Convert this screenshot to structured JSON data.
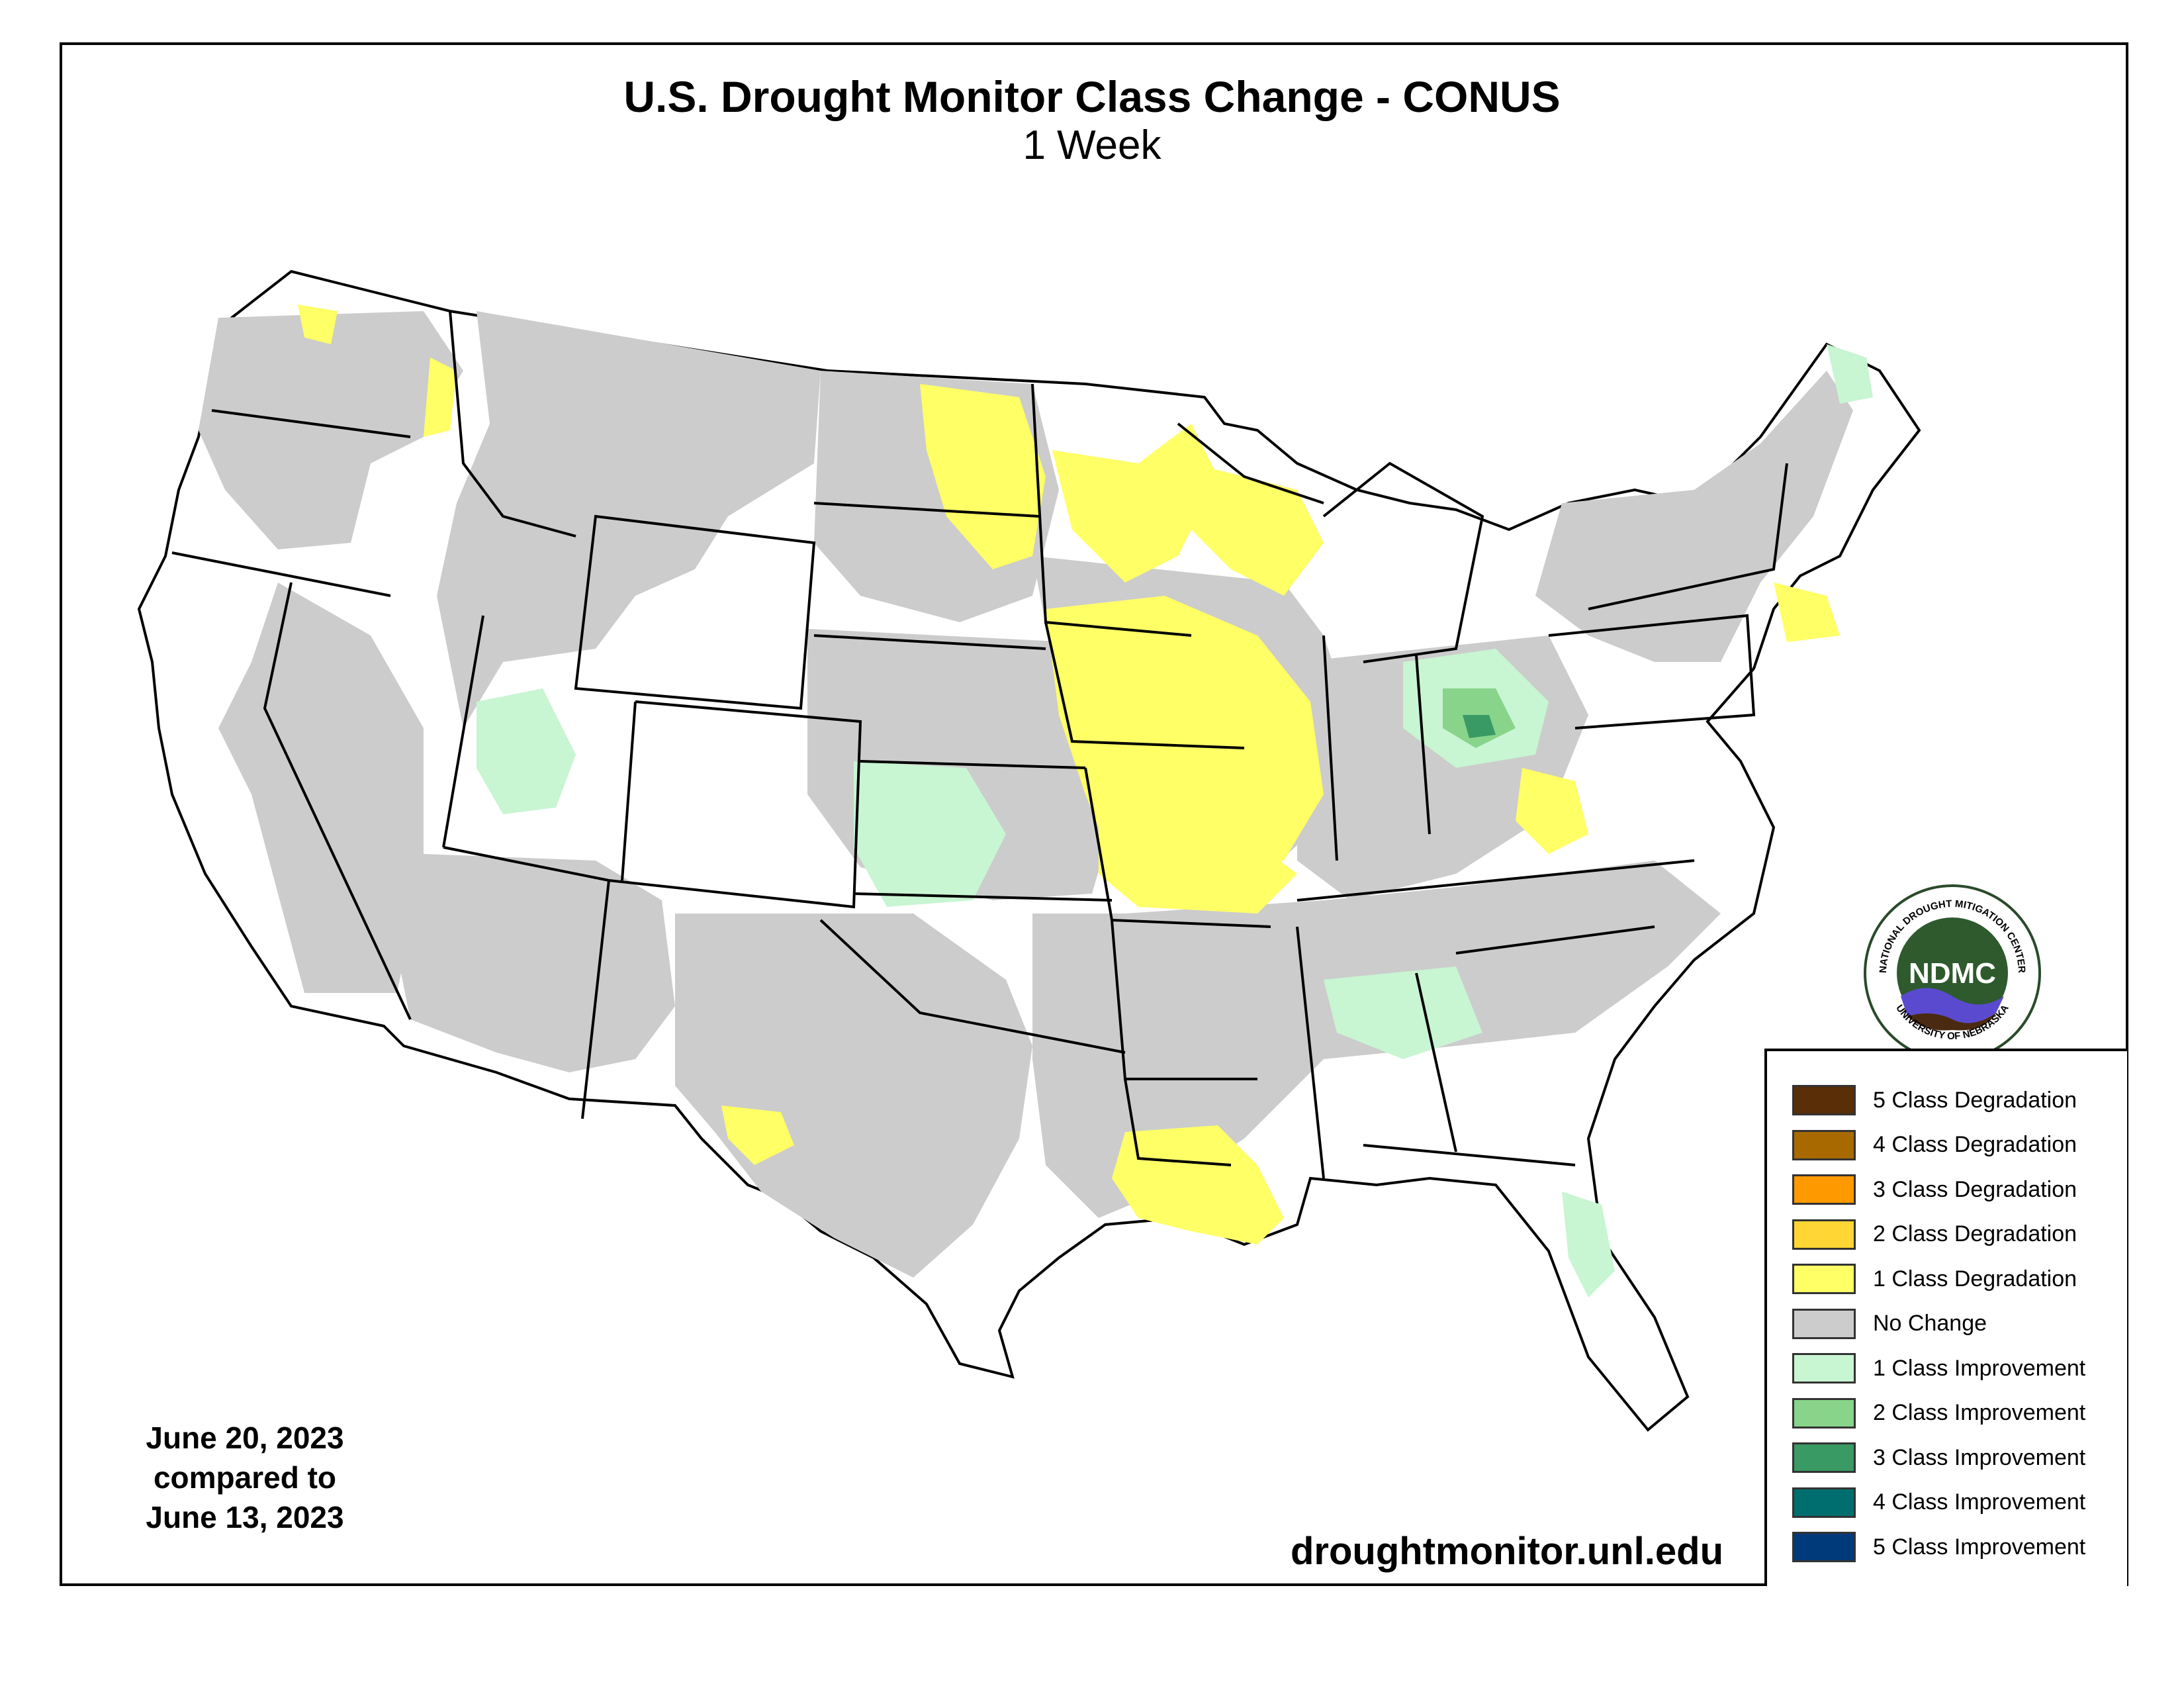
{
  "title": "U.S. Drought Monitor Class Change - CONUS",
  "subtitle": "1 Week",
  "date_text": {
    "line1": "June 20, 2023",
    "line2": "compared to",
    "line3": "June 13, 2023"
  },
  "url": "droughtmonitor.unl.edu",
  "logo": {
    "center_text": "NDMC",
    "ring_top": "NATIONAL DROUGHT MITIGATION CENTER",
    "ring_bottom": "UNIVERSITY OF NEBRASKA"
  },
  "colors": {
    "no_change": "#cccccc",
    "deg1": "#ffff66",
    "deg2": "#ffd633",
    "imp1": "#c8f5d2",
    "imp2": "#88d48b",
    "imp3": "#3a9a64",
    "border": "#000000"
  },
  "legend": [
    {
      "label": "5 Class Degradation",
      "color": "#5a2e06"
    },
    {
      "label": "4 Class Degradation",
      "color": "#a86a00"
    },
    {
      "label": "3 Class Degradation",
      "color": "#ff9900"
    },
    {
      "label": "2 Class Degradation",
      "color": "#ffd633"
    },
    {
      "label": "1 Class Degradation",
      "color": "#ffff66"
    },
    {
      "label": "No Change",
      "color": "#cccccc"
    },
    {
      "label": "1 Class Improvement",
      "color": "#c8f5d2"
    },
    {
      "label": "2 Class Improvement",
      "color": "#88d48b"
    },
    {
      "label": "3 Class Improvement",
      "color": "#3a9a64"
    },
    {
      "label": "4 Class Improvement",
      "color": "#006e6e"
    },
    {
      "label": "5 Class Improvement",
      "color": "#003a7a"
    }
  ]
}
